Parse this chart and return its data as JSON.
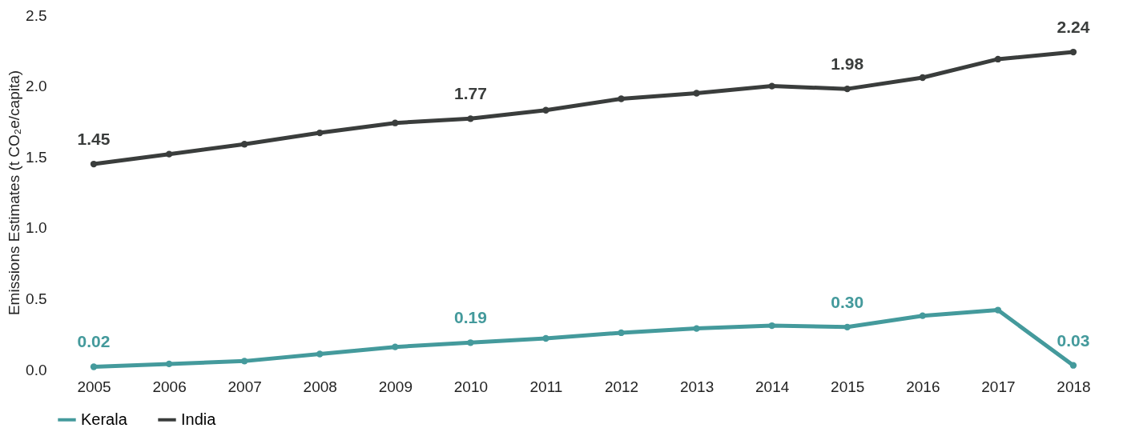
{
  "chart_data": {
    "type": "line",
    "ylabel": "Emissions Estimates (t CO₂e/capita)",
    "categories": [
      "2005",
      "2006",
      "2007",
      "2008",
      "2009",
      "2010",
      "2011",
      "2012",
      "2013",
      "2014",
      "2015",
      "2016",
      "2017",
      "2018"
    ],
    "series": [
      {
        "name": "Kerala",
        "color": "#449a9c",
        "values": [
          0.02,
          0.04,
          0.06,
          0.11,
          0.16,
          0.19,
          0.22,
          0.26,
          0.29,
          0.31,
          0.3,
          0.38,
          0.42,
          0.03
        ],
        "value_labels": [
          "0.02",
          null,
          null,
          null,
          null,
          "0.19",
          null,
          null,
          null,
          null,
          "0.30",
          null,
          null,
          "0.03"
        ]
      },
      {
        "name": "India",
        "color": "#3a3d3c",
        "values": [
          1.45,
          1.52,
          1.59,
          1.67,
          1.74,
          1.77,
          1.83,
          1.91,
          1.95,
          2.0,
          1.98,
          2.06,
          2.19,
          2.24
        ],
        "value_labels": [
          "1.45",
          null,
          null,
          null,
          null,
          "1.77",
          null,
          null,
          null,
          null,
          "1.98",
          null,
          null,
          "2.24"
        ]
      }
    ],
    "ylim": [
      0,
      2.5
    ],
    "yticks": [
      {
        "value": 0,
        "label": "0.0"
      },
      0.5,
      {
        "value": 1,
        "label": "1.0"
      },
      1.5,
      {
        "value": 2,
        "label": "2.0"
      },
      2.5
    ],
    "grid": false,
    "legend": "bottom",
    "marker": "circle",
    "line_style": "solid"
  }
}
